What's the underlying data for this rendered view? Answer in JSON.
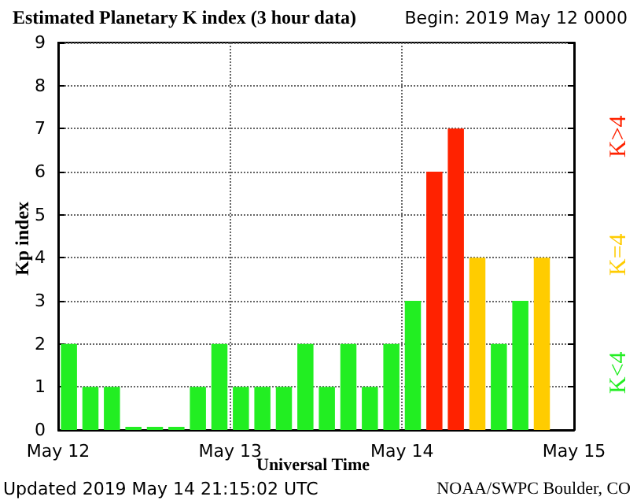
{
  "chart_data": {
    "type": "bar",
    "title": "Estimated Planetary K index (3 hour data)",
    "subtitle": "Begin: 2019 May 12 0000",
    "xlabel": "Universal Time",
    "ylabel": "Kp index",
    "annotations": [
      "Updated 2019 May 14 21:15:02 UTC",
      "NOAA/SWPC Boulder, CO"
    ],
    "x": [
      "2019-05-12T01:30",
      "2019-05-12T04:30",
      "2019-05-12T07:30",
      "2019-05-12T10:30",
      "2019-05-12T13:30",
      "2019-05-12T16:30",
      "2019-05-12T19:30",
      "2019-05-12T22:30",
      "2019-05-13T01:30",
      "2019-05-13T04:30",
      "2019-05-13T07:30",
      "2019-05-13T10:30",
      "2019-05-13T13:30",
      "2019-05-13T16:30",
      "2019-05-13T19:30",
      "2019-05-13T22:30",
      "2019-05-14T01:30",
      "2019-05-14T04:30",
      "2019-05-14T07:30",
      "2019-05-14T10:30",
      "2019-05-14T13:30",
      "2019-05-14T16:30",
      "2019-05-14T19:30"
    ],
    "series": [
      {
        "name": "K<4",
        "color": "#22ee22",
        "values": [
          2,
          1,
          1,
          0,
          0,
          0,
          1,
          2,
          1,
          1,
          1,
          2,
          1,
          2,
          1,
          2,
          3,
          null,
          null,
          null,
          2,
          3,
          null
        ]
      },
      {
        "name": "K=4",
        "color": "#ffcc00",
        "values": [
          null,
          null,
          null,
          null,
          null,
          null,
          null,
          null,
          null,
          null,
          null,
          null,
          null,
          null,
          null,
          null,
          null,
          null,
          null,
          4,
          null,
          null,
          4
        ]
      },
      {
        "name": "K>4",
        "color": "#ff2200",
        "values": [
          null,
          null,
          null,
          null,
          null,
          null,
          null,
          null,
          null,
          null,
          null,
          null,
          null,
          null,
          null,
          null,
          null,
          6,
          7,
          null,
          null,
          null,
          null
        ]
      }
    ],
    "xlim": [
      "2019-05-12",
      "2019-05-15"
    ],
    "xticks": [
      {
        "value": "2019-05-12",
        "label": "May 12"
      },
      {
        "value": "2019-05-13",
        "label": "May 13"
      },
      {
        "value": "2019-05-14",
        "label": "May 14"
      },
      {
        "value": "2019-05-15",
        "label": "May 15"
      }
    ],
    "ylim": [
      0,
      9
    ],
    "yticks": [
      0,
      1,
      2,
      3,
      4,
      5,
      6,
      7,
      8,
      9
    ],
    "grid": true,
    "line_style": "dotted",
    "legend": "right"
  }
}
